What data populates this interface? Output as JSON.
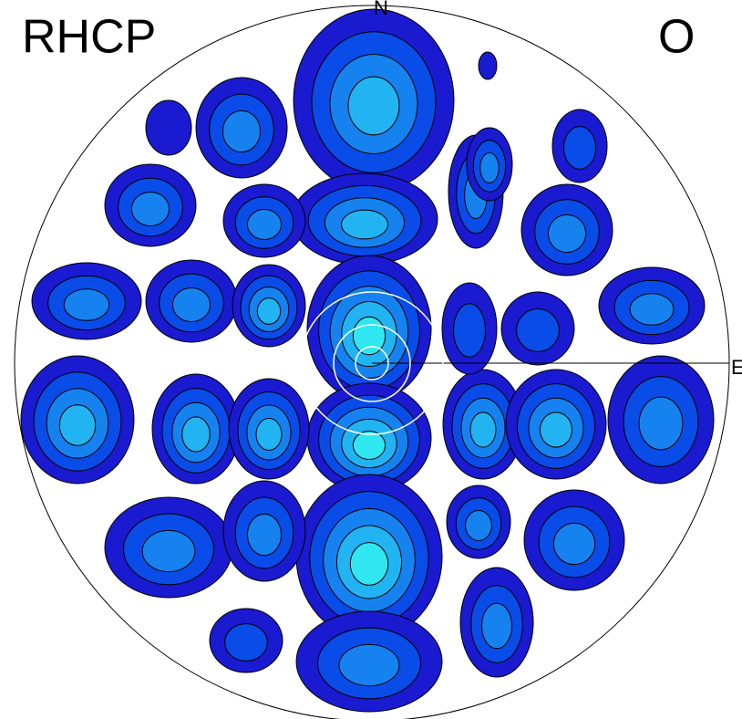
{
  "header": {
    "title": "RHCP",
    "tag": "O"
  },
  "compass": {
    "north": "N",
    "east": "E"
  }
}
